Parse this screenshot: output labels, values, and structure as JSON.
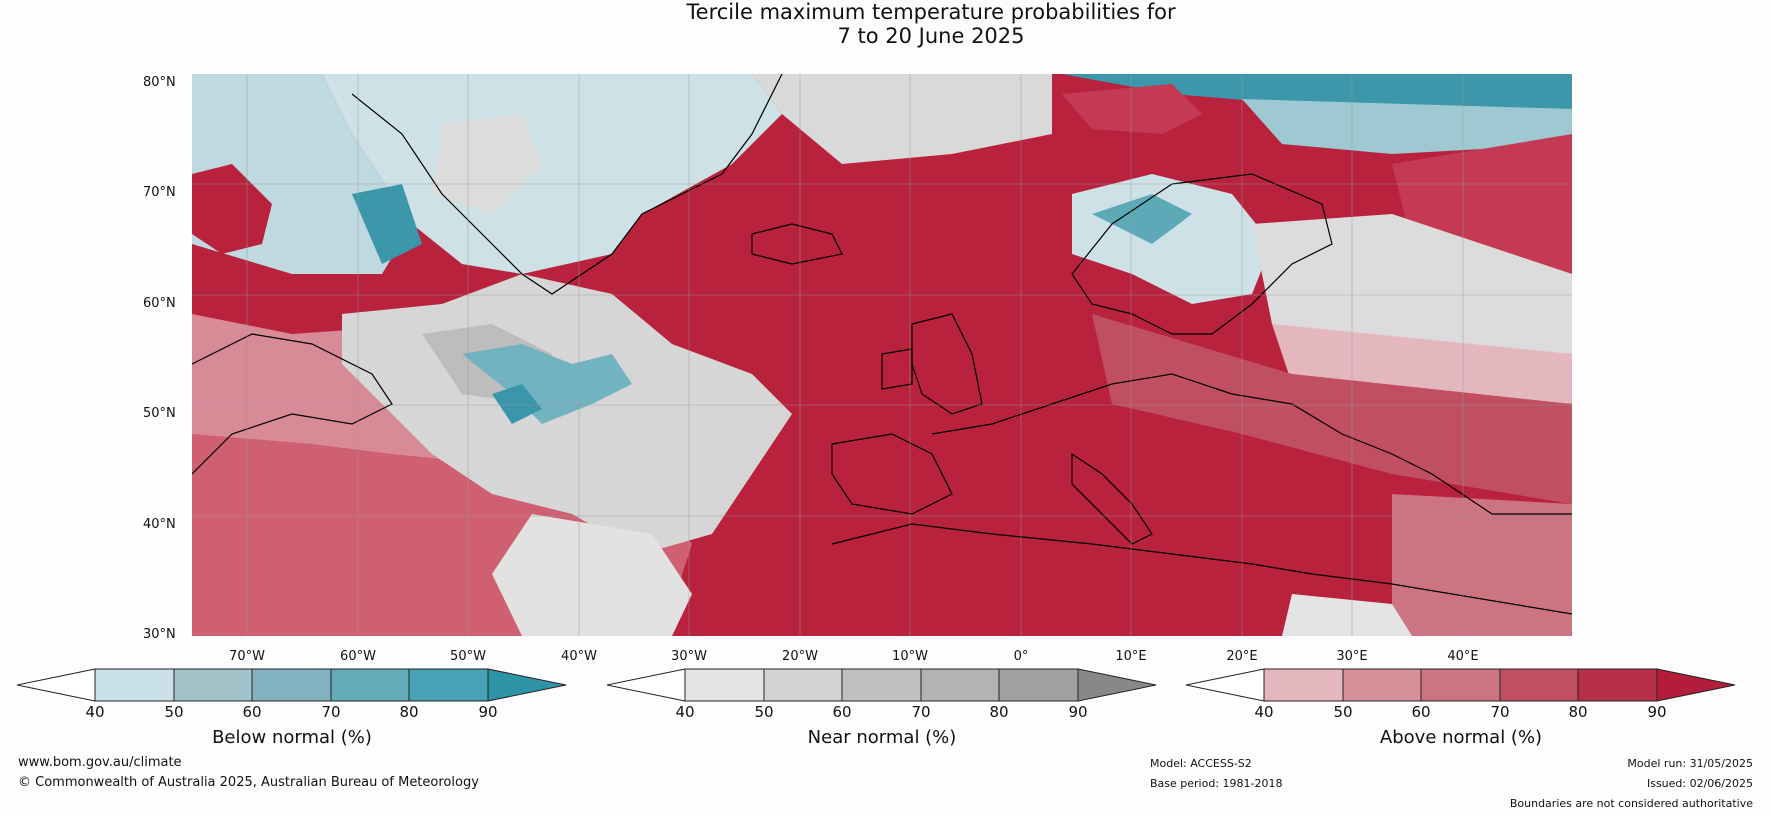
{
  "title": {
    "line1": "Tercile maximum temperature probabilities for",
    "line2": "7 to 20 June 2025"
  },
  "map": {
    "lat_labels": [
      "80°N",
      "70°N",
      "60°N",
      "50°N",
      "40°N",
      "30°N"
    ],
    "lon_labels": [
      "70°W",
      "60°W",
      "50°W",
      "40°W",
      "30°W",
      "20°W",
      "10°W",
      "0°",
      "10°E",
      "20°E",
      "30°E",
      "40°E"
    ],
    "colors": {
      "ocean_warm": "#b8223d",
      "land_warm": "#c43a52",
      "greenland": "#cde1e7",
      "arctic_teal": "#3d97aa",
      "near_normal": "#d6d6d6",
      "coastline": "#000000",
      "borders": "#888888",
      "grid": "#999999"
    }
  },
  "colorbars": [
    {
      "label": "Below normal (%)",
      "ticks": [
        "40",
        "50",
        "60",
        "70",
        "80",
        "90"
      ],
      "colors": [
        "#ffffff",
        "#c8e0e6",
        "#a3c3cb",
        "#82b1c0",
        "#63abb9",
        "#48a2b5",
        "#2f93a7"
      ]
    },
    {
      "label": "Near normal (%)",
      "ticks": [
        "40",
        "50",
        "60",
        "70",
        "80",
        "90"
      ],
      "colors": [
        "#ffffff",
        "#e4e4e4",
        "#d3d3d3",
        "#c1c1c1",
        "#b3b3b3",
        "#a1a1a1",
        "#888888"
      ]
    },
    {
      "label": "Above normal (%)",
      "ticks": [
        "40",
        "50",
        "60",
        "70",
        "80",
        "90"
      ],
      "colors": [
        "#ffffff",
        "#e4b6be",
        "#d69099",
        "#cc7482",
        "#c14f62",
        "#b83047",
        "#b31d3a"
      ]
    }
  ],
  "footer": {
    "website": "www.bom.gov.au/climate",
    "copyright": "© Commonwealth of Australia 2025, Australian Bureau of Meteorology",
    "model": "Model: ACCESS-S2",
    "base_period": "Base period: 1981-2018",
    "model_run": "Model run: 31/05/2025",
    "issued": "Issued: 02/06/2025",
    "disclaimer": "Boundaries are not considered authoritative"
  }
}
